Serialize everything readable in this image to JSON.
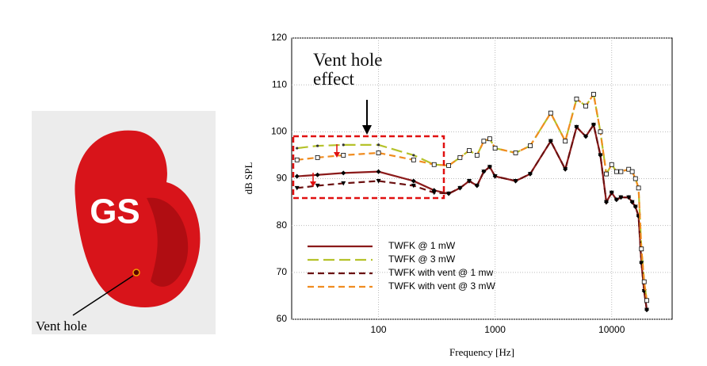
{
  "photo": {
    "logo": "GS",
    "label": "Vent hole"
  },
  "chart_data": {
    "type": "line",
    "annotation": "Vent hole effect",
    "x_label": "Frequency [Hz]",
    "y_label": "dB SPL",
    "x_log": true,
    "grid": true,
    "legend": "lower left",
    "xlim": [
      18,
      33000
    ],
    "ylim": [
      60,
      120
    ],
    "xticks": [
      100,
      1000,
      10000
    ],
    "yticks": [
      60,
      70,
      80,
      90,
      100,
      110,
      120
    ],
    "x": [
      20,
      30,
      50,
      100,
      200,
      300,
      400,
      500,
      600,
      700,
      800,
      900,
      1000,
      1500,
      2000,
      3000,
      4000,
      5000,
      6000,
      7000,
      8000,
      9000,
      10000,
      11000,
      12000,
      14000,
      15000,
      16000,
      17000,
      18000,
      19000,
      20000
    ],
    "series": [
      {
        "name": "TWFK @ 1 mW",
        "color": "#8b1a1a",
        "dash": "solid",
        "marker": "diamond",
        "values": [
          90.5,
          90.8,
          91.2,
          91.5,
          89.5,
          87.5,
          86.8,
          88,
          89.5,
          88.5,
          91.5,
          92.5,
          90.5,
          89.5,
          91,
          98,
          92,
          101,
          99,
          101.5,
          95,
          85,
          87,
          85.5,
          86,
          86,
          85,
          84,
          82,
          72,
          66,
          62
        ]
      },
      {
        "name": "TWFK @ 3 mW",
        "color": "#b5c22a",
        "dash": "long",
        "marker": "dot",
        "values": [
          96.5,
          97,
          97.2,
          97.2,
          95,
          93,
          92.8,
          94.5,
          96,
          95,
          98,
          98.5,
          96.5,
          95.5,
          97,
          104,
          98,
          107,
          105.5,
          108,
          100,
          91,
          93,
          91.5,
          91.5,
          92,
          91.5,
          90,
          88,
          75,
          68,
          64
        ]
      },
      {
        "name": "TWFK with vent @ 1 mw",
        "color": "#6b1010",
        "dash": "medium",
        "marker": "triangle",
        "values": [
          88,
          88.5,
          89,
          89.5,
          88.5,
          87,
          86.8,
          88,
          89.5,
          88.5,
          91.5,
          92.5,
          90.5,
          89.5,
          91,
          98,
          92,
          101,
          99,
          101.5,
          95,
          85,
          87,
          85.5,
          86,
          86,
          85,
          84,
          82,
          72,
          66,
          62
        ]
      },
      {
        "name": "TWFK with vent @ 3 mW",
        "color": "#f08c20",
        "dash": "medium",
        "marker": "square",
        "values": [
          94,
          94.5,
          95,
          95.5,
          94,
          93,
          92.8,
          94.5,
          96,
          95,
          98,
          98.5,
          96.5,
          95.5,
          97,
          104,
          98,
          107,
          105.5,
          108,
          100,
          91,
          93,
          91.5,
          91.5,
          92,
          91.5,
          90,
          88,
          75,
          68,
          64
        ]
      }
    ]
  }
}
